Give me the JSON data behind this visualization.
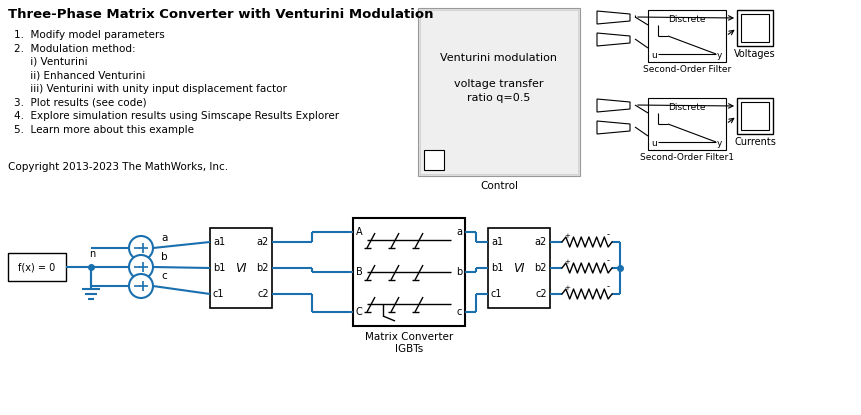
{
  "title": "Three-Phase Matrix Converter with Venturini Modulation",
  "bg_color": "#ffffff",
  "text_color": "#000000",
  "blue_wire": "#1a6faf",
  "block_border": "#000000",
  "list_items": [
    "1.  Modify model parameters",
    "2.  Modulation method:",
    "     i) Venturini",
    "     ii) Enhanced Venturini",
    "     iii) Venturini with unity input displacement factor",
    "3.  Plot results (see code)",
    "4.  Explore simulation results using Simscape Results Explorer",
    "5.  Learn more about this example"
  ],
  "copyright": "Copyright 2013-2023 The MathWorks, Inc.",
  "control_text1": "Venturini modulation",
  "control_text2": "voltage transfer",
  "control_text3": "ratio q=0.5",
  "control_label": "Control",
  "filter_label1": "Second-Order Filter",
  "filter_label2": "Second-Order Filter1",
  "voltages_label": "Voltages",
  "currents_label": "Currents",
  "matrix_label1": "Matrix Converter",
  "matrix_label2": "IGBTs",
  "fx_label": "f(x) = 0",
  "vi_label": "VI"
}
